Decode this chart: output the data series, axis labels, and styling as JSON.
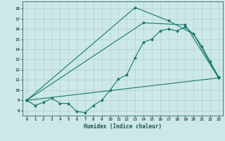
{
  "xlabel": "Humidex (Indice chaleur)",
  "bg_color": "#cce8e8",
  "grid_color": "#b0c8c8",
  "line_color": "#1a7a6a",
  "xlim": [
    -0.5,
    23.5
  ],
  "ylim": [
    7.5,
    18.7
  ],
  "xticks": [
    0,
    1,
    2,
    3,
    4,
    5,
    6,
    7,
    8,
    9,
    10,
    11,
    12,
    13,
    14,
    15,
    16,
    17,
    18,
    19,
    20,
    21,
    22,
    23
  ],
  "yticks": [
    8,
    9,
    10,
    11,
    12,
    13,
    14,
    15,
    16,
    17,
    18
  ],
  "line1_x": [
    0,
    1,
    2,
    3,
    4,
    5,
    6,
    7,
    8,
    9,
    10,
    11,
    12,
    13,
    14,
    15,
    16,
    17,
    18,
    19,
    20,
    21,
    22,
    23
  ],
  "line1_y": [
    9.0,
    8.5,
    8.8,
    9.2,
    8.7,
    8.7,
    7.9,
    7.8,
    8.5,
    9.0,
    10.0,
    11.1,
    11.5,
    13.2,
    14.7,
    15.0,
    15.8,
    16.0,
    15.8,
    16.2,
    15.5,
    14.3,
    12.8,
    11.3
  ],
  "line2_x": [
    0,
    13,
    17,
    20,
    23
  ],
  "line2_y": [
    9.0,
    18.1,
    16.8,
    15.5,
    11.2
  ],
  "line3_x": [
    0,
    23
  ],
  "line3_y": [
    9.0,
    11.2
  ],
  "line4_x": [
    0,
    14,
    19,
    23
  ],
  "line4_y": [
    9.0,
    16.6,
    16.4,
    11.2
  ]
}
